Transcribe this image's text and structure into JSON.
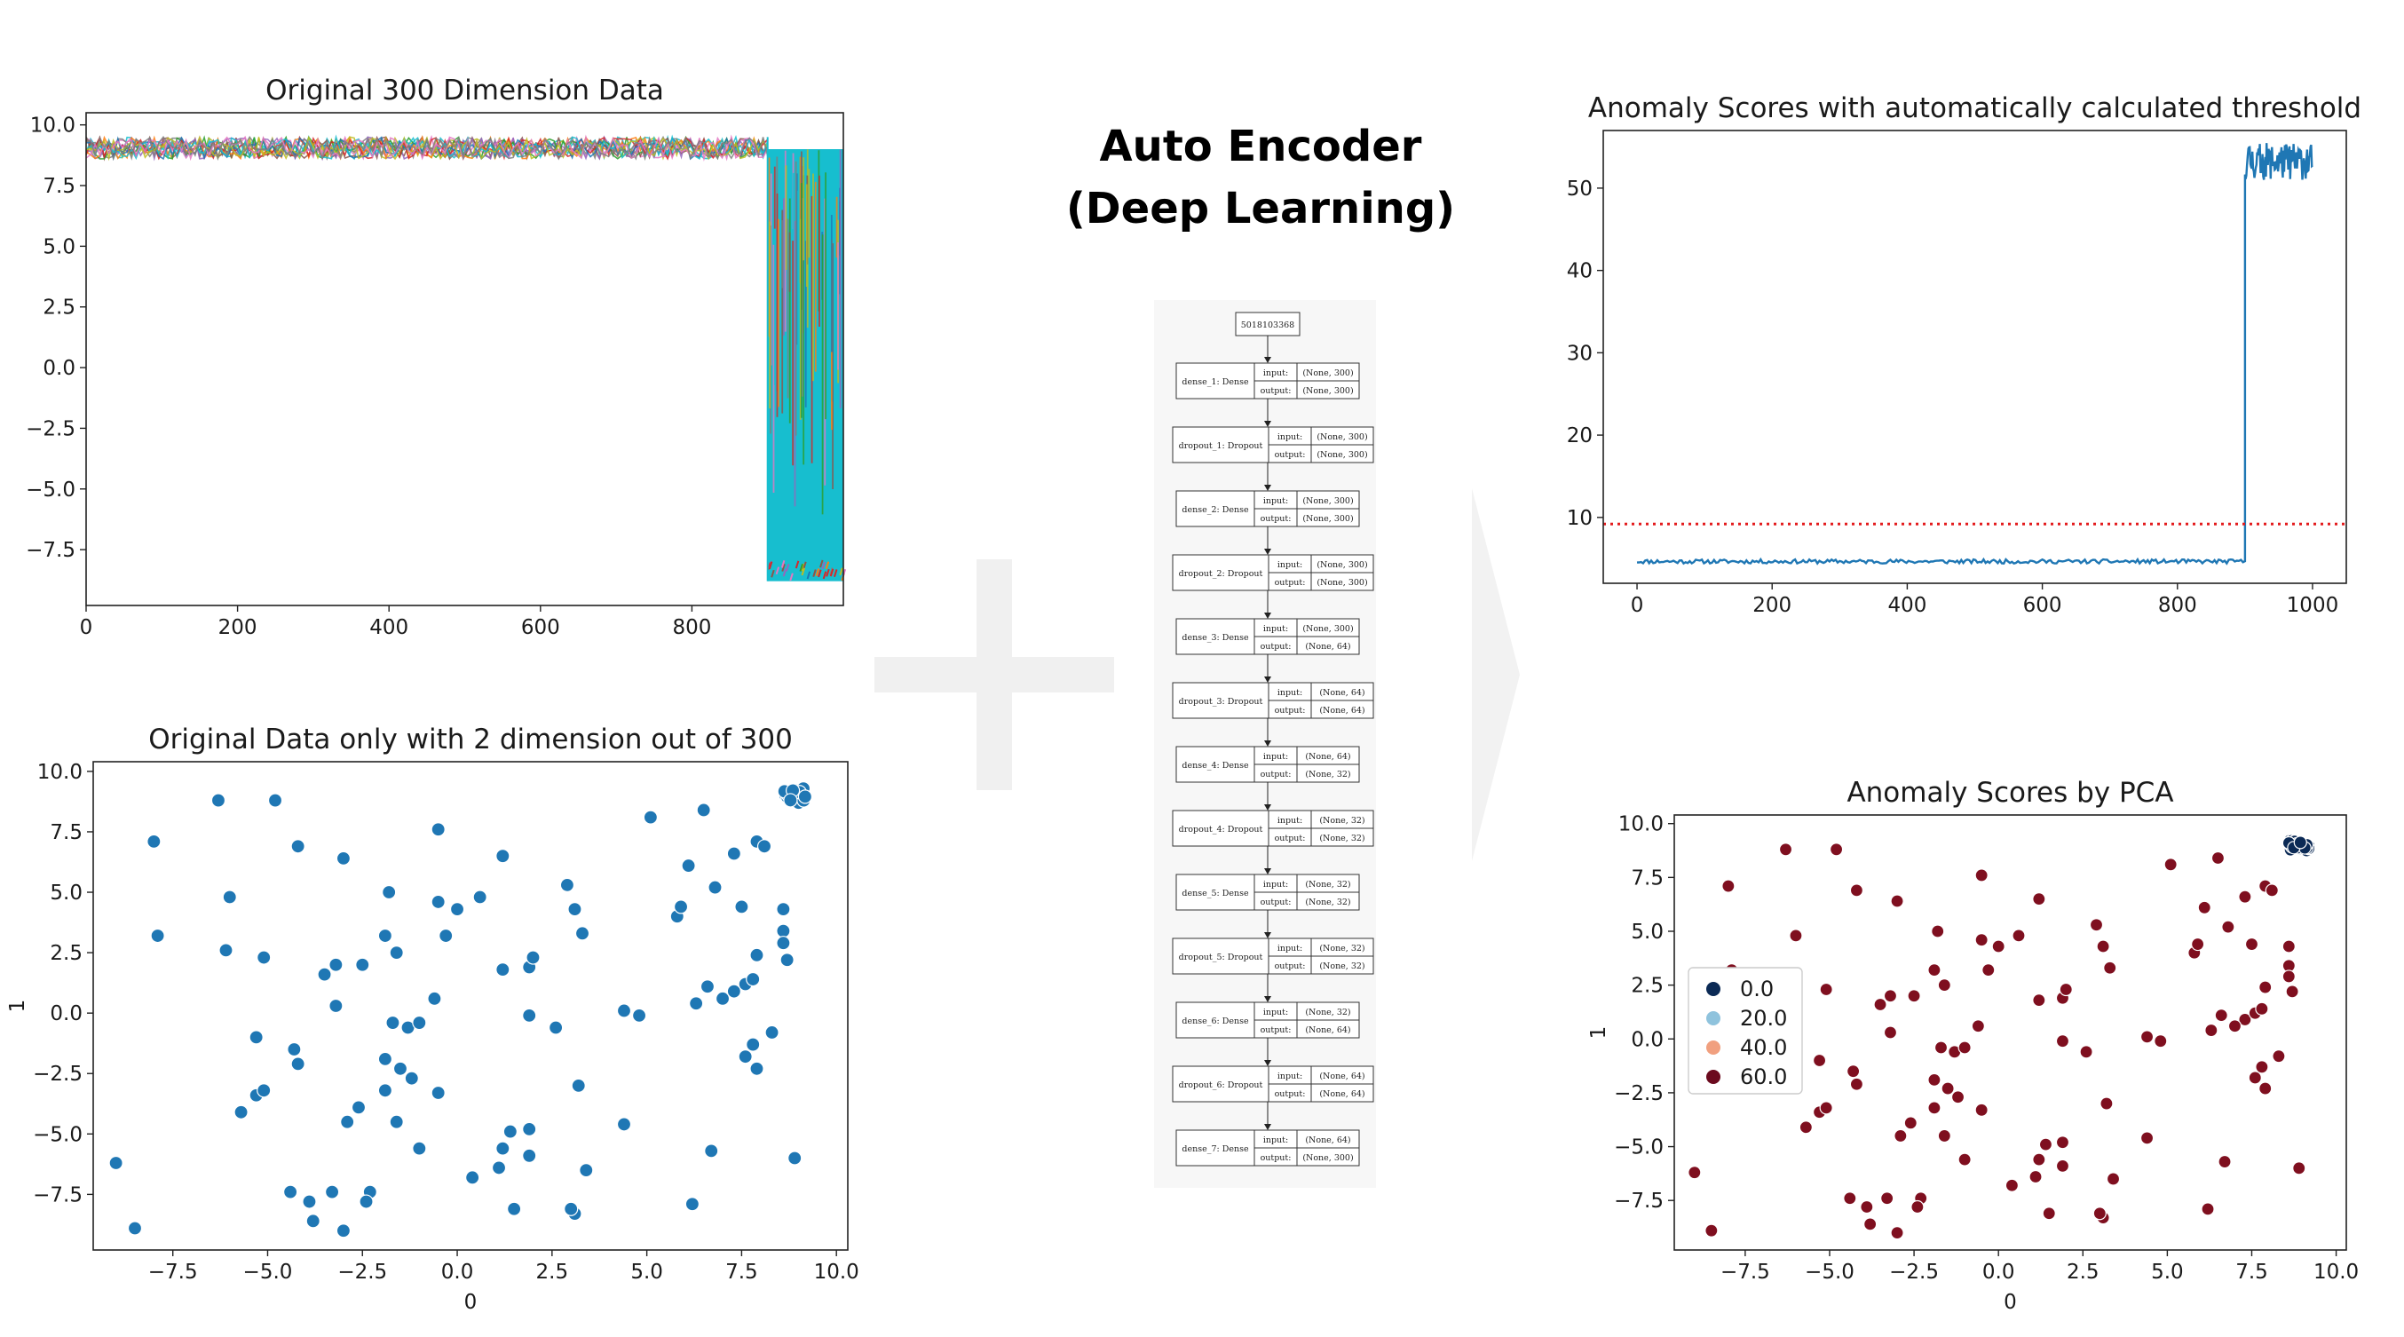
{
  "center": {
    "title_line1": "Auto Encoder",
    "title_line2": "(Deep Learning)",
    "model": {
      "root": "5018103368",
      "layers": [
        {
          "name": "dense_1: Dense",
          "input": "(None, 300)",
          "output": "(None, 300)"
        },
        {
          "name": "dropout_1: Dropout",
          "input": "(None, 300)",
          "output": "(None, 300)"
        },
        {
          "name": "dense_2: Dense",
          "input": "(None, 300)",
          "output": "(None, 300)"
        },
        {
          "name": "dropout_2: Dropout",
          "input": "(None, 300)",
          "output": "(None, 300)"
        },
        {
          "name": "dense_3: Dense",
          "input": "(None, 300)",
          "output": "(None, 64)"
        },
        {
          "name": "dropout_3: Dropout",
          "input": "(None, 64)",
          "output": "(None, 64)"
        },
        {
          "name": "dense_4: Dense",
          "input": "(None, 64)",
          "output": "(None, 32)"
        },
        {
          "name": "dropout_4: Dropout",
          "input": "(None, 32)",
          "output": "(None, 32)"
        },
        {
          "name": "dense_5: Dense",
          "input": "(None, 32)",
          "output": "(None, 32)"
        },
        {
          "name": "dropout_5: Dropout",
          "input": "(None, 32)",
          "output": "(None, 32)"
        },
        {
          "name": "dense_6: Dense",
          "input": "(None, 32)",
          "output": "(None, 64)"
        },
        {
          "name": "dropout_6: Dropout",
          "input": "(None, 64)",
          "output": "(None, 64)"
        },
        {
          "name": "dense_7: Dense",
          "input": "(None, 64)",
          "output": "(None, 300)"
        }
      ],
      "input_label": "input:",
      "output_label": "output:"
    }
  },
  "chart_data": [
    {
      "id": "original_300",
      "type": "line",
      "title": "Original 300 Dimension Data",
      "xlabel": "",
      "ylabel": "",
      "xlim": [
        0,
        1000
      ],
      "ylim": [
        -9.8,
        10.5
      ],
      "xticks": [
        0,
        200,
        400,
        600,
        800
      ],
      "xtick_labels": [
        "0",
        "200",
        "400",
        "600",
        "800"
      ],
      "yticks": [
        10,
        7.5,
        5,
        2.5,
        0,
        -2.5,
        -5,
        -7.5
      ],
      "ytick_labels": [
        "10.0",
        "7.5",
        "5.0",
        "2.5",
        "0.0",
        "−2.5",
        "−5.0",
        "−7.5"
      ],
      "series_count": 300,
      "segments": [
        {
          "x_start": 0,
          "x_end": 900,
          "y_min": 8.6,
          "y_max": 9.5,
          "note": "all 300 dimensions overlapping"
        },
        {
          "x_start": 900,
          "x_end": 1000,
          "y_min": -8.8,
          "y_max": 9.0,
          "note": "anomalous region"
        }
      ],
      "colors": [
        "#17becf",
        "#bcbd22",
        "#e377c2",
        "#7f7f7f",
        "#8c564b",
        "#9467bd",
        "#2ca02c",
        "#ff7f0e",
        "#d62728",
        "#1f77b4"
      ]
    },
    {
      "id": "original_2d",
      "type": "scatter",
      "title": "Original Data only with 2 dimension out of 300",
      "xlabel": "0",
      "ylabel": "1",
      "xlim": [
        -9.6,
        10.3
      ],
      "ylim": [
        -9.8,
        10.4
      ],
      "xticks": [
        -7.5,
        -5,
        -2.5,
        0,
        2.5,
        5,
        7.5,
        10
      ],
      "xtick_labels": [
        "−7.5",
        "−5.0",
        "−2.5",
        "0.0",
        "2.5",
        "5.0",
        "7.5",
        "10.0"
      ],
      "yticks": [
        10,
        7.5,
        5,
        2.5,
        0,
        -2.5,
        -5,
        -7.5
      ],
      "ytick_labels": [
        "10.0",
        "7.5",
        "5.0",
        "2.5",
        "0.0",
        "−2.5",
        "−5.0",
        "−7.5"
      ],
      "color": "#1f77b4",
      "cluster": {
        "center": [
          8.9,
          9.0
        ],
        "count": 30,
        "spread": 0.3
      },
      "points": [
        [
          -6.3,
          8.8
        ],
        [
          -4.8,
          8.8
        ],
        [
          -8.0,
          7.1
        ],
        [
          -4.2,
          6.9
        ],
        [
          -3.0,
          6.4
        ],
        [
          -0.5,
          7.6
        ],
        [
          1.2,
          6.5
        ],
        [
          2.9,
          5.3
        ],
        [
          5.1,
          8.1
        ],
        [
          6.5,
          8.4
        ],
        [
          7.3,
          6.6
        ],
        [
          7.9,
          7.1
        ],
        [
          8.1,
          6.9
        ],
        [
          -6.0,
          4.8
        ],
        [
          -1.8,
          5.0
        ],
        [
          -0.5,
          4.6
        ],
        [
          0.0,
          4.3
        ],
        [
          0.6,
          4.8
        ],
        [
          3.1,
          4.3
        ],
        [
          5.8,
          4.0
        ],
        [
          5.9,
          4.4
        ],
        [
          6.1,
          6.1
        ],
        [
          6.8,
          5.2
        ],
        [
          7.5,
          4.4
        ],
        [
          8.6,
          4.3
        ],
        [
          -7.9,
          3.2
        ],
        [
          -6.1,
          2.6
        ],
        [
          -5.1,
          2.3
        ],
        [
          -3.5,
          1.6
        ],
        [
          -3.2,
          2.0
        ],
        [
          -2.5,
          2.0
        ],
        [
          -1.9,
          3.2
        ],
        [
          -1.6,
          2.5
        ],
        [
          -0.3,
          3.2
        ],
        [
          1.2,
          1.8
        ],
        [
          1.9,
          1.9
        ],
        [
          2.0,
          2.3
        ],
        [
          3.3,
          3.3
        ],
        [
          8.6,
          3.4
        ],
        [
          8.6,
          2.9
        ],
        [
          8.7,
          2.2
        ],
        [
          7.9,
          2.4
        ],
        [
          -3.2,
          0.3
        ],
        [
          -1.7,
          -0.4
        ],
        [
          -1.3,
          -0.6
        ],
        [
          -1.0,
          -0.4
        ],
        [
          -0.6,
          0.6
        ],
        [
          1.9,
          -0.1
        ],
        [
          2.6,
          -0.6
        ],
        [
          4.4,
          0.1
        ],
        [
          4.8,
          -0.1
        ],
        [
          6.3,
          0.4
        ],
        [
          6.6,
          1.1
        ],
        [
          7.3,
          0.9
        ],
        [
          7.6,
          1.2
        ],
        [
          7.8,
          1.4
        ],
        [
          7.0,
          0.6
        ],
        [
          -5.3,
          -1.0
        ],
        [
          -4.3,
          -1.5
        ],
        [
          -4.2,
          -2.1
        ],
        [
          -1.9,
          -1.9
        ],
        [
          -1.5,
          -2.3
        ],
        [
          -1.2,
          -2.7
        ],
        [
          7.6,
          -1.8
        ],
        [
          7.8,
          -1.3
        ],
        [
          7.9,
          -2.3
        ],
        [
          8.3,
          -0.8
        ],
        [
          -5.3,
          -3.4
        ],
        [
          -5.1,
          -3.2
        ],
        [
          -5.7,
          -4.1
        ],
        [
          -2.6,
          -3.9
        ],
        [
          -1.9,
          -3.2
        ],
        [
          -0.5,
          -3.3
        ],
        [
          3.2,
          -3.0
        ],
        [
          -1.6,
          -4.5
        ],
        [
          -2.9,
          -4.5
        ],
        [
          1.4,
          -4.9
        ],
        [
          1.9,
          -4.8
        ],
        [
          4.4,
          -4.6
        ],
        [
          -9.0,
          -6.2
        ],
        [
          -1.0,
          -5.6
        ],
        [
          1.2,
          -5.6
        ],
        [
          1.1,
          -6.4
        ],
        [
          1.9,
          -5.9
        ],
        [
          3.4,
          -6.5
        ],
        [
          0.4,
          -6.8
        ],
        [
          6.7,
          -5.7
        ],
        [
          8.9,
          -6.0
        ],
        [
          -8.5,
          -8.9
        ],
        [
          -4.4,
          -7.4
        ],
        [
          -3.9,
          -7.8
        ],
        [
          -3.8,
          -8.6
        ],
        [
          -3.3,
          -7.4
        ],
        [
          -2.3,
          -7.4
        ],
        [
          -2.4,
          -7.8
        ],
        [
          -3.0,
          -9.0
        ],
        [
          1.5,
          -8.1
        ],
        [
          3.1,
          -8.3
        ],
        [
          3.0,
          -8.1
        ],
        [
          6.2,
          -7.9
        ]
      ]
    },
    {
      "id": "auto_threshold",
      "type": "line",
      "title": "Anomaly Scores with automatically calculated threshold",
      "xlabel": "",
      "ylabel": "",
      "xlim": [
        -50,
        1050
      ],
      "ylim": [
        2,
        57
      ],
      "xticks": [
        0,
        200,
        400,
        600,
        800,
        1000
      ],
      "xtick_labels": [
        "0",
        "200",
        "400",
        "600",
        "800",
        "1000"
      ],
      "yticks": [
        10,
        20,
        30,
        40,
        50
      ],
      "ytick_labels": [
        "10",
        "20",
        "30",
        "40",
        "50"
      ],
      "color": "#1f77b4",
      "normal_segment": {
        "x_start": 0,
        "x_end": 900,
        "y_min": 4.4,
        "y_max": 4.9
      },
      "anomaly_segment": {
        "x_start": 900,
        "x_end": 1000,
        "y_min": 51.0,
        "y_max": 55.5
      },
      "threshold": {
        "value": 9.2,
        "color": "#e31a1c",
        "style": "dotted"
      }
    },
    {
      "id": "pca_scores",
      "type": "scatter",
      "title": "Anomaly Scores by PCA",
      "xlabel": "0",
      "ylabel": "1",
      "xlim": [
        -9.6,
        10.3
      ],
      "ylim": [
        -9.8,
        10.4
      ],
      "xticks": [
        -7.5,
        -5,
        -2.5,
        0,
        2.5,
        5,
        7.5,
        10
      ],
      "xtick_labels": [
        "−7.5",
        "−5.0",
        "−2.5",
        "0.0",
        "2.5",
        "5.0",
        "7.5",
        "10.0"
      ],
      "yticks": [
        10,
        7.5,
        5,
        2.5,
        0,
        -2.5,
        -5,
        -7.5
      ],
      "ytick_labels": [
        "10.0",
        "7.5",
        "5.0",
        "2.5",
        "0.0",
        "−2.5",
        "−5.0",
        "−7.5"
      ],
      "point_color": "#7f0f1f",
      "cluster_color": "#0b2a55",
      "legend": [
        {
          "label": "0.0",
          "color": "#0b2a55"
        },
        {
          "label": "20.0",
          "color": "#8fc3dd"
        },
        {
          "label": "40.0",
          "color": "#f1a07f"
        },
        {
          "label": "60.0",
          "color": "#6b0a1e"
        }
      ],
      "legend_position": "center-left"
    }
  ]
}
